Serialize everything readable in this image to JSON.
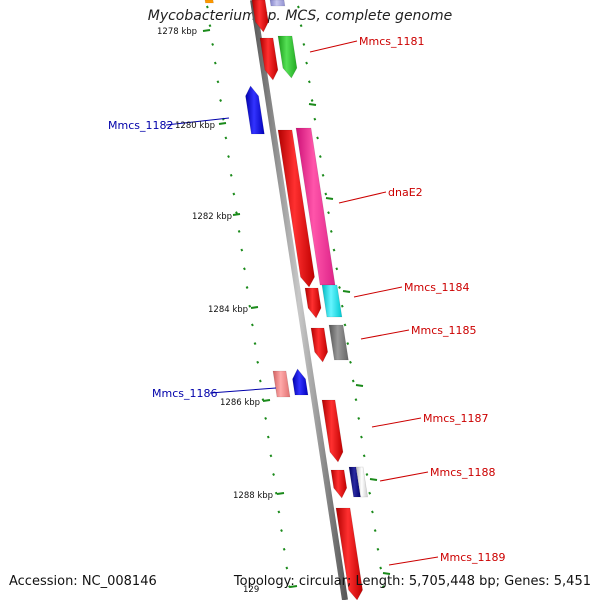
{
  "title": "Mycobacterium sp. MCS, complete genome",
  "footer": {
    "accession": "Accession: NC_008146",
    "summary": "Topology: circular; Length: 5,705,448 bp; Genes: 5,451"
  },
  "ruler_labels": [
    "1278 kbp",
    "1280 kbp",
    "1282 kbp",
    "1284 kbp",
    "1286 kbp",
    "1288 kbp",
    "129"
  ],
  "genes": [
    {
      "label": "Mmcs_1181",
      "strand": "forward",
      "color": "#cc0000"
    },
    {
      "label": "Mmcs_1182",
      "strand": "reverse",
      "color": "#0000aa"
    },
    {
      "label": "dnaE2",
      "strand": "forward",
      "color": "#cc0000"
    },
    {
      "label": "Mmcs_1184",
      "strand": "forward",
      "color": "#cc0000"
    },
    {
      "label": "Mmcs_1185",
      "strand": "forward",
      "color": "#cc0000"
    },
    {
      "label": "Mmcs_1186",
      "strand": "reverse",
      "color": "#0000aa"
    },
    {
      "label": "Mmcs_1187",
      "strand": "forward",
      "color": "#cc0000"
    },
    {
      "label": "Mmcs_1188",
      "strand": "forward",
      "color": "#cc0000"
    },
    {
      "label": "Mmcs_1189",
      "strand": "forward",
      "color": "#cc0000"
    }
  ],
  "colors": {
    "backbone": "#8c8c8c",
    "tick": "#1a8a1a",
    "cds_red": "#ff0000",
    "cds_green": "#33cc33",
    "cds_pink": "#ff3399",
    "cds_cyan": "#00e5ee",
    "cds_grey": "#777777",
    "cds_salmon": "#f08080",
    "cds_blue": "#0000ee",
    "cds_navy": "#000080",
    "cds_lavender": "#a0a0e0",
    "cds_orange": "#ff9900"
  }
}
